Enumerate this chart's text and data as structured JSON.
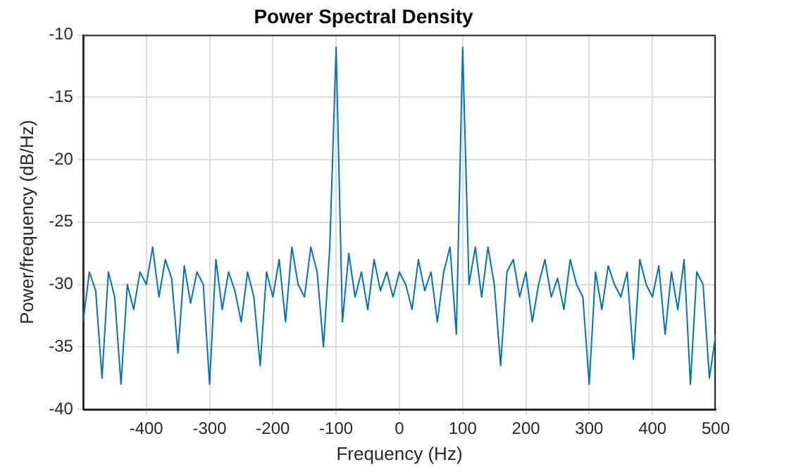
{
  "chart_data": {
    "type": "line",
    "title": "Power Spectral Density",
    "xlabel": "Frequency (Hz)",
    "ylabel": "Power/frequency (dB/Hz)",
    "x": [
      -500,
      -490,
      -480,
      -470,
      -460,
      -450,
      -440,
      -430,
      -420,
      -410,
      -400,
      -390,
      -380,
      -370,
      -360,
      -350,
      -340,
      -330,
      -320,
      -310,
      -300,
      -290,
      -280,
      -270,
      -260,
      -250,
      -240,
      -230,
      -220,
      -210,
      -200,
      -190,
      -180,
      -170,
      -160,
      -150,
      -140,
      -130,
      -120,
      -110,
      -100,
      -90,
      -80,
      -70,
      -60,
      -50,
      -40,
      -30,
      -20,
      -10,
      0,
      10,
      20,
      30,
      40,
      50,
      60,
      70,
      80,
      90,
      100,
      110,
      120,
      130,
      140,
      150,
      160,
      170,
      180,
      190,
      200,
      210,
      220,
      230,
      240,
      250,
      260,
      270,
      280,
      290,
      300,
      310,
      320,
      330,
      340,
      350,
      360,
      370,
      380,
      390,
      400,
      410,
      420,
      430,
      440,
      450,
      460,
      470,
      480,
      490,
      500
    ],
    "series": [
      {
        "color": "#0072bd",
        "values": [
          -33,
          -29,
          -30.5,
          -37.5,
          -29,
          -31,
          -38,
          -30,
          -32,
          -29,
          -30,
          -27,
          -31,
          -28,
          -29.5,
          -35.5,
          -28.5,
          -31.5,
          -29,
          -30,
          -38,
          -28,
          -32,
          -29,
          -30.5,
          -33,
          -29,
          -31,
          -36.5,
          -29,
          -31,
          -28,
          -33,
          -27,
          -30,
          -31,
          -27,
          -29,
          -35,
          -27,
          -11,
          -33,
          -27.5,
          -31,
          -29,
          -32,
          -28,
          -30.5,
          -29,
          -31,
          -29,
          -30,
          -32,
          -28,
          -30.5,
          -29,
          -33,
          -29,
          -27,
          -34,
          -11,
          -30,
          -27,
          -31,
          -27,
          -30,
          -36.5,
          -29,
          -28,
          -31,
          -29,
          -33,
          -30,
          -28,
          -31,
          -29.5,
          -32,
          -28,
          -30,
          -31,
          -38,
          -29,
          -32,
          -28.5,
          -30,
          -31,
          -29,
          -36,
          -28,
          -30,
          -31,
          -28.5,
          -34,
          -29,
          -32,
          -28,
          -38,
          -29,
          -30,
          -37.5,
          -34
        ]
      }
    ],
    "xlim": [
      -500,
      500
    ],
    "xticks": [
      -400,
      -300,
      -200,
      -100,
      0,
      100,
      200,
      300,
      400,
      500
    ],
    "ylim": [
      -40,
      -10
    ],
    "yticks": [
      -40,
      -35,
      -30,
      -25,
      -20,
      -15,
      -10
    ],
    "grid": true,
    "legend": false,
    "marker": "none",
    "line_style": "solid"
  }
}
